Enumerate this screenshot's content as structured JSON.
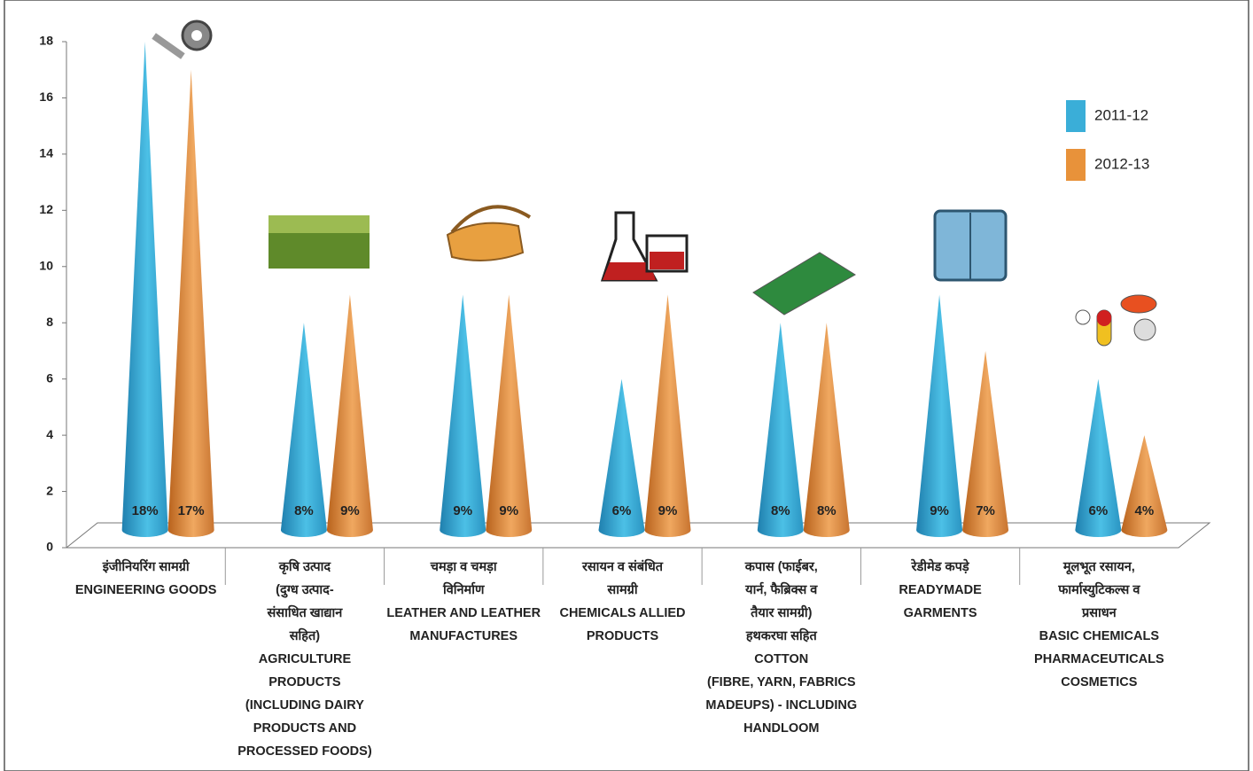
{
  "chart_data": {
    "type": "cone",
    "categories": [
      [
        "इंजीनियरिंग सामग्री",
        "ENGINEERING  GOODS"
      ],
      [
        "कृषि उत्पाद",
        "(दुग्ध उत्पाद-",
        "संसाधित खाद्यान",
        "सहित)",
        "AGRICULTURE",
        "PRODUCTS",
        "(INCLUDING  DAIRY",
        "PRODUCTS AND",
        "PROCESSED FOODS)"
      ],
      [
        "चमड़ा व चमड़ा",
        "विनिर्माण",
        "LEATHER AND LEATHER",
        "MANUFACTURES"
      ],
      [
        "रसायन व संबंधित",
        "सामग्री",
        "CHEMICALS ALLIED",
        "PRODUCTS"
      ],
      [
        "कपास (फाईबर,",
        "यार्न, फैब्रिक्स व",
        "तैयार सामग्री)",
        "हथकरघा सहित",
        "COTTON",
        "(FIBRE,  YARN,  FABRICS",
        "MADEUPS) - INCLUDING",
        "HANDLOOM"
      ],
      [
        "रेडीमेड कपड़े",
        "READYMADE",
        "GARMENTS"
      ],
      [
        "मूलभूत रसायन,",
        "फार्मास्युटिकल्स व",
        "प्रसाधन",
        "BASIC CHEMICALS",
        "PHARMACEUTICALS",
        "COSMETICS"
      ]
    ],
    "series": [
      {
        "name": "2011-12",
        "color": "#3aaed8",
        "values": [
          18,
          8,
          9,
          6,
          8,
          9,
          6
        ],
        "value_labels": [
          "18%",
          "8%",
          "9%",
          "6%",
          "8%",
          "9%",
          "6%"
        ]
      },
      {
        "name": "2012-13",
        "color": "#e8923a",
        "values": [
          17,
          9,
          9,
          9,
          8,
          7,
          4
        ],
        "value_labels": [
          "17%",
          "9%",
          "9%",
          "9%",
          "8%",
          "7%",
          "4%"
        ]
      }
    ],
    "ylim": [
      0,
      18
    ],
    "yticks": [
      0,
      2,
      4,
      6,
      8,
      10,
      12,
      14,
      16,
      18
    ],
    "legend": "top-right"
  }
}
